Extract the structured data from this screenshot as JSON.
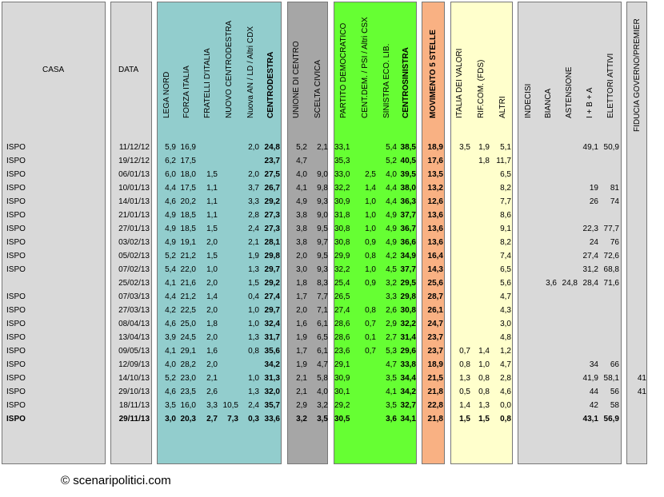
{
  "headers": {
    "casa": "CASA",
    "data": "DATA",
    "lega_nord": "LEGA NORD",
    "forza_italia": "FORZA ITALIA",
    "fratelli_italia": "FRATELLI D'ITALIA",
    "nuovo_centrodestra": "NUOVO  CENTRODESTRA",
    "nuova_an": "Nuova AN / LD / Altri CDX",
    "centrodestra": "CENTRODESTRA",
    "unione_centro": "UNIONE DI CENTRO",
    "scelta_civica": "SCELTA CIVICA",
    "pd": "PARTITO DEMOCRATICO",
    "cent_dem": "CENT.DEM. / PSI / Altri CSX",
    "sel": "SINISTRA ECO. LIB.",
    "centrosinistra": "CENTROSINISTRA",
    "m5s": "MOVIMENTO 5 STELLE",
    "idv": "ITALIA DEI VALORI",
    "rif_com": "RIF.COM. (FDS)",
    "altri": "ALTRI",
    "indecisi": "INDECISI",
    "bianca": "BIANCA",
    "astensione": "ASTENSIONE",
    "iba": "I + B + A",
    "elettori_attivi": "ELETTORI ATTIVI",
    "fiducia": "FIDUCIA GOVERNO/PREMIER"
  },
  "colors": {
    "gray": "#d9d9d9",
    "teal": "#92cdcd",
    "darkgray": "#a6a6a6",
    "green": "#66ff33",
    "orange": "#f9b183",
    "yellow": "#ffffcc"
  },
  "rows": [
    {
      "casa": "ISPO",
      "data": "11/12/12",
      "ln": "5,9",
      "fi": "16,9",
      "fdi": "",
      "ncd": "",
      "an": "2,0",
      "cdx": "24,8",
      "udc": "5,2",
      "sc": "2,1",
      "pd": "33,1",
      "cd": "",
      "sel": "5,4",
      "csx": "38,5",
      "m5s": "18,9",
      "idv": "3,5",
      "rif": "1,9",
      "alt": "5,1",
      "ind": "",
      "bia": "",
      "ast": "",
      "iba": "49,1",
      "ea": "50,9",
      "fid": ""
    },
    {
      "casa": "ISPO",
      "data": "19/12/12",
      "ln": "6,2",
      "fi": "17,5",
      "fdi": "",
      "ncd": "",
      "an": "",
      "cdx": "23,7",
      "udc": "4,7",
      "sc": "",
      "pd": "35,3",
      "cd": "",
      "sel": "5,2",
      "csx": "40,5",
      "m5s": "17,6",
      "idv": "",
      "rif": "1,8",
      "alt": "11,7",
      "ind": "",
      "bia": "",
      "ast": "",
      "iba": "",
      "ea": "",
      "fid": ""
    },
    {
      "casa": "ISPO",
      "data": "06/01/13",
      "ln": "6,0",
      "fi": "18,0",
      "fdi": "1,5",
      "ncd": "",
      "an": "2,0",
      "cdx": "27,5",
      "udc": "4,0",
      "sc": "9,0",
      "pd": "33,0",
      "cd": "2,5",
      "sel": "4,0",
      "csx": "39,5",
      "m5s": "13,5",
      "idv": "",
      "rif": "",
      "alt": "6,5",
      "ind": "",
      "bia": "",
      "ast": "",
      "iba": "",
      "ea": "",
      "fid": ""
    },
    {
      "casa": "ISPO",
      "data": "10/01/13",
      "ln": "4,4",
      "fi": "17,5",
      "fdi": "1,1",
      "ncd": "",
      "an": "3,7",
      "cdx": "26,7",
      "udc": "4,1",
      "sc": "9,8",
      "pd": "32,2",
      "cd": "1,4",
      "sel": "4,4",
      "csx": "38,0",
      "m5s": "13,2",
      "idv": "",
      "rif": "",
      "alt": "8,2",
      "ind": "",
      "bia": "",
      "ast": "",
      "iba": "19",
      "ea": "81",
      "fid": ""
    },
    {
      "casa": "ISPO",
      "data": "14/01/13",
      "ln": "4,6",
      "fi": "20,2",
      "fdi": "1,1",
      "ncd": "",
      "an": "3,3",
      "cdx": "29,2",
      "udc": "4,9",
      "sc": "9,3",
      "pd": "30,9",
      "cd": "1,0",
      "sel": "4,4",
      "csx": "36,3",
      "m5s": "12,6",
      "idv": "",
      "rif": "",
      "alt": "7,7",
      "ind": "",
      "bia": "",
      "ast": "",
      "iba": "26",
      "ea": "74",
      "fid": ""
    },
    {
      "casa": "ISPO",
      "data": "21/01/13",
      "ln": "4,9",
      "fi": "18,5",
      "fdi": "1,1",
      "ncd": "",
      "an": "2,8",
      "cdx": "27,3",
      "udc": "3,8",
      "sc": "9,0",
      "pd": "31,8",
      "cd": "1,0",
      "sel": "4,9",
      "csx": "37,7",
      "m5s": "13,6",
      "idv": "",
      "rif": "",
      "alt": "8,6",
      "ind": "",
      "bia": "",
      "ast": "",
      "iba": "",
      "ea": "",
      "fid": ""
    },
    {
      "casa": "ISPO",
      "data": "27/01/13",
      "ln": "4,9",
      "fi": "18,5",
      "fdi": "1,5",
      "ncd": "",
      "an": "2,4",
      "cdx": "27,3",
      "udc": "3,8",
      "sc": "9,5",
      "pd": "30,8",
      "cd": "1,0",
      "sel": "4,9",
      "csx": "36,7",
      "m5s": "13,6",
      "idv": "",
      "rif": "",
      "alt": "9,1",
      "ind": "",
      "bia": "",
      "ast": "",
      "iba": "22,3",
      "ea": "77,7",
      "fid": ""
    },
    {
      "casa": "ISPO",
      "data": "03/02/13",
      "ln": "4,9",
      "fi": "19,1",
      "fdi": "2,0",
      "ncd": "",
      "an": "2,1",
      "cdx": "28,1",
      "udc": "3,8",
      "sc": "9,7",
      "pd": "30,8",
      "cd": "0,9",
      "sel": "4,9",
      "csx": "36,6",
      "m5s": "13,6",
      "idv": "",
      "rif": "",
      "alt": "8,2",
      "ind": "",
      "bia": "",
      "ast": "",
      "iba": "24",
      "ea": "76",
      "fid": ""
    },
    {
      "casa": "ISPO",
      "data": "05/02/13",
      "ln": "5,2",
      "fi": "21,2",
      "fdi": "1,5",
      "ncd": "",
      "an": "1,9",
      "cdx": "29,8",
      "udc": "2,0",
      "sc": "9,5",
      "pd": "29,9",
      "cd": "0,8",
      "sel": "4,2",
      "csx": "34,9",
      "m5s": "16,4",
      "idv": "",
      "rif": "",
      "alt": "7,4",
      "ind": "",
      "bia": "",
      "ast": "",
      "iba": "27,4",
      "ea": "72,6",
      "fid": ""
    },
    {
      "casa": "ISPO",
      "data": "07/02/13",
      "ln": "5,4",
      "fi": "22,0",
      "fdi": "1,0",
      "ncd": "",
      "an": "1,3",
      "cdx": "29,7",
      "udc": "3,0",
      "sc": "9,3",
      "pd": "32,2",
      "cd": "1,0",
      "sel": "4,5",
      "csx": "37,7",
      "m5s": "14,3",
      "idv": "",
      "rif": "",
      "alt": "6,5",
      "ind": "",
      "bia": "",
      "ast": "",
      "iba": "31,2",
      "ea": "68,8",
      "fid": ""
    },
    {
      "casa": "",
      "data": "25/02/13",
      "ln": "4,1",
      "fi": "21,6",
      "fdi": "2,0",
      "ncd": "",
      "an": "1,5",
      "cdx": "29,2",
      "udc": "1,8",
      "sc": "8,3",
      "pd": "25,4",
      "cd": "0,9",
      "sel": "3,2",
      "csx": "29,5",
      "m5s": "25,6",
      "idv": "",
      "rif": "",
      "alt": "5,6",
      "ind": "3,6",
      "bia": "24,8",
      "ast": "",
      "iba": "28,4",
      "ea": "71,6",
      "fid": ""
    },
    {
      "casa": "ISPO",
      "data": "07/03/13",
      "ln": "4,4",
      "fi": "21,2",
      "fdi": "1,4",
      "ncd": "",
      "an": "0,4",
      "cdx": "27,4",
      "udc": "1,7",
      "sc": "7,7",
      "pd": "26,5",
      "cd": "",
      "sel": "3,3",
      "csx": "29,8",
      "m5s": "28,7",
      "idv": "",
      "rif": "",
      "alt": "4,7",
      "ind": "",
      "bia": "",
      "ast": "",
      "iba": "",
      "ea": "",
      "fid": ""
    },
    {
      "casa": "ISPO",
      "data": "27/03/13",
      "ln": "4,2",
      "fi": "22,5",
      "fdi": "2,0",
      "ncd": "",
      "an": "1,0",
      "cdx": "29,7",
      "udc": "2,0",
      "sc": "7,1",
      "pd": "27,4",
      "cd": "0,8",
      "sel": "2,6",
      "csx": "30,8",
      "m5s": "26,1",
      "idv": "",
      "rif": "",
      "alt": "4,3",
      "ind": "",
      "bia": "",
      "ast": "",
      "iba": "",
      "ea": "",
      "fid": ""
    },
    {
      "casa": "ISPO",
      "data": "08/04/13",
      "ln": "4,6",
      "fi": "25,0",
      "fdi": "1,8",
      "ncd": "",
      "an": "1,0",
      "cdx": "32,4",
      "udc": "1,6",
      "sc": "6,1",
      "pd": "28,6",
      "cd": "0,7",
      "sel": "2,9",
      "csx": "32,2",
      "m5s": "24,7",
      "idv": "",
      "rif": "",
      "alt": "3,0",
      "ind": "",
      "bia": "",
      "ast": "",
      "iba": "",
      "ea": "",
      "fid": ""
    },
    {
      "casa": "ISPO",
      "data": "13/04/13",
      "ln": "3,9",
      "fi": "24,5",
      "fdi": "2,0",
      "ncd": "",
      "an": "1,3",
      "cdx": "31,7",
      "udc": "1,9",
      "sc": "6,5",
      "pd": "28,6",
      "cd": "0,1",
      "sel": "2,7",
      "csx": "31,4",
      "m5s": "23,7",
      "idv": "",
      "rif": "",
      "alt": "4,8",
      "ind": "",
      "bia": "",
      "ast": "",
      "iba": "",
      "ea": "",
      "fid": ""
    },
    {
      "casa": "ISPO",
      "data": "09/05/13",
      "ln": "4,1",
      "fi": "29,1",
      "fdi": "1,6",
      "ncd": "",
      "an": "0,8",
      "cdx": "35,6",
      "udc": "1,7",
      "sc": "6,1",
      "pd": "23,6",
      "cd": "0,7",
      "sel": "5,3",
      "csx": "29,6",
      "m5s": "23,7",
      "idv": "0,7",
      "rif": "1,4",
      "alt": "1,2",
      "ind": "",
      "bia": "",
      "ast": "",
      "iba": "",
      "ea": "",
      "fid": ""
    },
    {
      "casa": "ISPO",
      "data": "12/09/13",
      "ln": "4,0",
      "fi": "28,2",
      "fdi": "2,0",
      "ncd": "",
      "an": "",
      "cdx": "34,2",
      "udc": "1,9",
      "sc": "4,7",
      "pd": "29,1",
      "cd": "",
      "sel": "4,7",
      "csx": "33,8",
      "m5s": "18,9",
      "idv": "0,8",
      "rif": "1,0",
      "alt": "4,7",
      "ind": "",
      "bia": "",
      "ast": "",
      "iba": "34",
      "ea": "66",
      "fid": ""
    },
    {
      "casa": "ISPO",
      "data": "14/10/13",
      "ln": "5,2",
      "fi": "23,0",
      "fdi": "2,1",
      "ncd": "",
      "an": "1,0",
      "cdx": "31,3",
      "udc": "2,1",
      "sc": "5,8",
      "pd": "30,9",
      "cd": "",
      "sel": "3,5",
      "csx": "34,4",
      "m5s": "21,5",
      "idv": "1,3",
      "rif": "0,8",
      "alt": "2,8",
      "ind": "",
      "bia": "",
      "ast": "",
      "iba": "41,9",
      "ea": "58,1",
      "fid": "41"
    },
    {
      "casa": "ISPO",
      "data": "29/10/13",
      "ln": "4,6",
      "fi": "23,5",
      "fdi": "2,6",
      "ncd": "",
      "an": "1,3",
      "cdx": "32,0",
      "udc": "2,1",
      "sc": "4,0",
      "pd": "30,1",
      "cd": "",
      "sel": "4,1",
      "csx": "34,2",
      "m5s": "21,8",
      "idv": "0,5",
      "rif": "0,8",
      "alt": "4,6",
      "ind": "",
      "bia": "",
      "ast": "",
      "iba": "44",
      "ea": "56",
      "fid": "41"
    },
    {
      "casa": "ISPO",
      "data": "18/11/13",
      "ln": "3,5",
      "fi": "16,0",
      "fdi": "3,3",
      "ncd": "10,5",
      "an": "2,4",
      "cdx": "35,7",
      "udc": "2,9",
      "sc": "3,2",
      "pd": "29,2",
      "cd": "",
      "sel": "3,5",
      "csx": "32,7",
      "m5s": "22,8",
      "idv": "1,4",
      "rif": "1,3",
      "alt": "0,0",
      "ind": "",
      "bia": "",
      "ast": "",
      "iba": "42",
      "ea": "58",
      "fid": ""
    },
    {
      "casa": "ISPO",
      "data": "29/11/13",
      "ln": "3,0",
      "fi": "20,3",
      "fdi": "2,7",
      "ncd": "7,3",
      "an": "0,3",
      "cdx": "33,6",
      "udc": "3,2",
      "sc": "3,5",
      "pd": "30,5",
      "cd": "",
      "sel": "3,6",
      "csx": "34,1",
      "m5s": "21,8",
      "idv": "1,5",
      "rif": "1,5",
      "alt": "0,8",
      "ind": "",
      "bia": "",
      "ast": "",
      "iba": "43,1",
      "ea": "56,9",
      "fid": ""
    }
  ],
  "footer": "© scenaripolitici.com"
}
